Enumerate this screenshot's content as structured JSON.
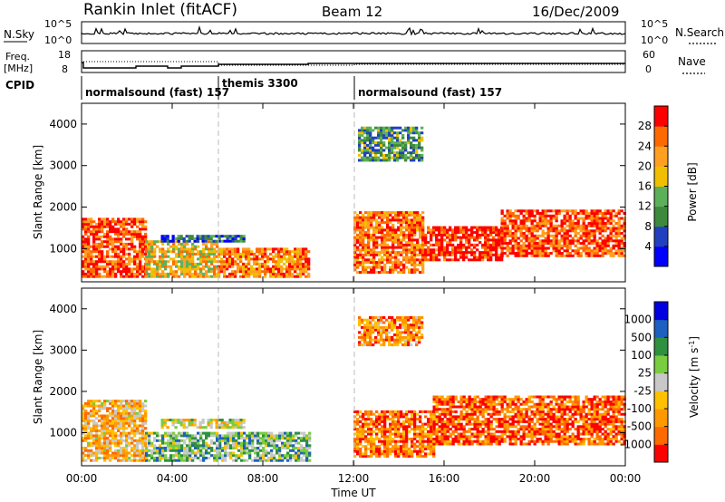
{
  "header": {
    "station": "Rankin Inlet (fitACF)",
    "beam": "Beam 12",
    "date": "16/Dec/2009"
  },
  "top_panels": {
    "nsky_label": "N.Sky",
    "nsky_ticks": [
      "10^5",
      "10^0"
    ],
    "nsearch_label": "N.Search",
    "nsearch_ticks": [
      "10^5",
      "10^0"
    ],
    "freq_label": "Freq.",
    "freq_unit": "[MHz]",
    "freq_ticks": [
      "18",
      "8"
    ],
    "nave_label": "Nave",
    "nave_ticks": [
      "60",
      "0"
    ],
    "cpid_label": "CPID",
    "cpid_segments": [
      {
        "label": "normalsound (fast) 157",
        "start_hour": 0
      },
      {
        "label": "themis 3300",
        "start_hour": 6
      },
      {
        "label": "normalsound (fast) 157",
        "start_hour": 12
      }
    ]
  },
  "colors": {
    "power": [
      "#0000ff",
      "#2040c0",
      "#3e8a3c",
      "#5cb05a",
      "#f0c000",
      "#ffa020",
      "#ff6a00",
      "#ff0000"
    ],
    "velocity": [
      "#ff0000",
      "#ff6a00",
      "#ff9900",
      "#ffc000",
      "#c8c8c8",
      "#7acc40",
      "#2f9040",
      "#1d60c0",
      "#0000e0"
    ]
  },
  "chart_data": [
    {
      "type": "heatmap",
      "panel": "power",
      "ylabel": "Slant Range [km]",
      "xlabel": "",
      "ylim": [
        200,
        4500
      ],
      "y_ticks": [
        1000,
        2000,
        3000,
        4000
      ],
      "colorbar_label": "Power [dB]",
      "colorbar_ticks": [
        "4",
        "8",
        "12",
        "16",
        "20",
        "24",
        "28"
      ],
      "regions": [
        {
          "t0": 0.0,
          "t1": 2.8,
          "r0": 300,
          "r1": 1700,
          "level": 0.85
        },
        {
          "t0": 2.8,
          "t1": 6.0,
          "r0": 300,
          "r1": 1200,
          "level": 0.6
        },
        {
          "t0": 6.0,
          "t1": 10.0,
          "r0": 300,
          "r1": 1000,
          "level": 0.75
        },
        {
          "t0": 3.5,
          "t1": 7.2,
          "r0": 1150,
          "r1": 1300,
          "level": 0.2
        },
        {
          "t0": 12.0,
          "t1": 15.0,
          "r0": 400,
          "r1": 1900,
          "level": 0.8
        },
        {
          "t0": 15.0,
          "t1": 18.5,
          "r0": 700,
          "r1": 1500,
          "level": 0.95
        },
        {
          "t0": 18.5,
          "t1": 24.0,
          "r0": 800,
          "r1": 1900,
          "level": 0.85
        },
        {
          "t0": 12.2,
          "t1": 15.0,
          "r0": 3100,
          "r1": 3900,
          "level": 0.35
        }
      ]
    },
    {
      "type": "heatmap",
      "panel": "velocity",
      "ylabel": "Slant Range [km]",
      "xlabel": "Time UT",
      "ylim": [
        200,
        4500
      ],
      "y_ticks": [
        1000,
        2000,
        3000,
        4000
      ],
      "x_ticks": [
        "00:00",
        "04:00",
        "08:00",
        "12:00",
        "16:00",
        "20:00",
        "00:00"
      ],
      "colorbar_label": "Velocity [m s",
      "colorbar_unit_sup": "-1",
      "colorbar_unit_end": "]",
      "colorbar_ticks": [
        "-1000",
        "-500",
        "-100",
        "-25",
        "25",
        "100",
        "500",
        "1000"
      ],
      "regions": [
        {
          "t0": 0.0,
          "t1": 2.8,
          "r0": 300,
          "r1": 1800,
          "level": 0.35
        },
        {
          "t0": 2.8,
          "t1": 10.0,
          "r0": 300,
          "r1": 1000,
          "level": 0.62
        },
        {
          "t0": 3.5,
          "t1": 7.2,
          "r0": 1100,
          "r1": 1300,
          "level": 0.5
        },
        {
          "t0": 12.0,
          "t1": 15.5,
          "r0": 400,
          "r1": 1500,
          "level": 0.2
        },
        {
          "t0": 15.5,
          "t1": 24.0,
          "r0": 700,
          "r1": 1900,
          "level": 0.15
        },
        {
          "t0": 12.2,
          "t1": 15.0,
          "r0": 3100,
          "r1": 3800,
          "level": 0.25
        }
      ]
    }
  ]
}
